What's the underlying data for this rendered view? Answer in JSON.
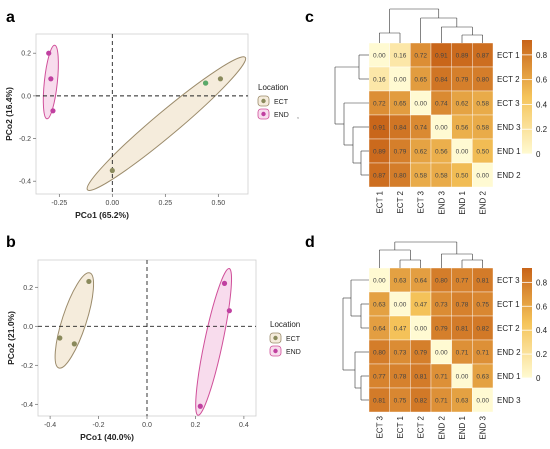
{
  "panels": [
    {
      "id": "a",
      "kind": "pcoa",
      "label": "a"
    },
    {
      "id": "c",
      "kind": "heatmap",
      "label": "c"
    },
    {
      "id": "b",
      "kind": "pcoa",
      "label": "b"
    },
    {
      "id": "d",
      "kind": "heatmap",
      "label": "d"
    }
  ],
  "legend": {
    "title": "Location",
    "items": [
      "ECT",
      "END"
    ]
  },
  "colors": {
    "ECT_point": "#8a8a5c",
    "ECT_ellipse_stroke": "#9b8b6b",
    "ECT_ellipse_fill": "#f5ecdc",
    "END_point": "#c040a0",
    "END_ellipse_stroke": "#d0509a",
    "END_ellipse_fill": "#f8dced",
    "green_point": "#5aaa6a",
    "heat_low": "#fff7c8",
    "heat_mid": "#f2b84a",
    "heat_high": "#c96a1a"
  },
  "chart_data": [
    {
      "id": "a",
      "type": "scatter",
      "xlabel": "PCo1 (65.2%)",
      "ylabel": "PCo2 (16.4%)",
      "xlim": [
        -0.36,
        0.64
      ],
      "ylim": [
        -0.46,
        0.29
      ],
      "xticks": [
        -0.25,
        0.0,
        0.25,
        0.5
      ],
      "yticks": [
        -0.4,
        -0.2,
        0.0,
        0.2
      ],
      "xtick_labels": [
        "-0.25",
        "0.00",
        "0.25",
        "0.50"
      ],
      "ytick_labels": [
        "-0.4",
        "-0.2",
        "0.0",
        "0.2"
      ],
      "series": [
        {
          "name": "ECT",
          "points": [
            [
              0.0,
              -0.35
            ],
            [
              0.44,
              0.06
            ],
            [
              0.51,
              0.08
            ]
          ]
        },
        {
          "name": "END",
          "points": [
            [
              -0.3,
              0.2
            ],
            [
              -0.29,
              0.08
            ],
            [
              -0.28,
              -0.07
            ]
          ]
        }
      ]
    },
    {
      "id": "b",
      "type": "scatter",
      "xlabel": "PCo1 (40.0%)",
      "ylabel": "PCo2 (21.0%)",
      "xlim": [
        -0.45,
        0.45
      ],
      "ylim": [
        -0.46,
        0.34
      ],
      "xticks": [
        -0.4,
        -0.2,
        0.0,
        0.2,
        0.4
      ],
      "yticks": [
        -0.4,
        -0.2,
        0.0,
        0.2
      ],
      "xtick_labels": [
        "-0.4",
        "-0.2",
        "0.0",
        "0.2",
        "0.4"
      ],
      "ytick_labels": [
        "-0.4",
        "-0.2",
        "0.0",
        "0.2"
      ],
      "series": [
        {
          "name": "ECT",
          "points": [
            [
              -0.24,
              0.23
            ],
            [
              -0.36,
              -0.06
            ],
            [
              -0.3,
              -0.09
            ]
          ]
        },
        {
          "name": "END",
          "points": [
            [
              0.32,
              0.22
            ],
            [
              0.34,
              0.08
            ],
            [
              0.22,
              -0.41
            ]
          ]
        }
      ]
    },
    {
      "id": "c",
      "type": "heatmap",
      "rows": [
        "ECT 1",
        "ECT 2",
        "ECT 3",
        "END 3",
        "END 1",
        "END 2"
      ],
      "cols": [
        "ECT 1",
        "ECT 2",
        "ECT 3",
        "END 3",
        "END 1",
        "END 2"
      ],
      "values": [
        [
          0.0,
          0.16,
          0.72,
          0.91,
          0.89,
          0.87
        ],
        [
          0.16,
          0.0,
          0.65,
          0.84,
          0.79,
          0.8
        ],
        [
          0.72,
          0.65,
          0.0,
          0.74,
          0.62,
          0.58
        ],
        [
          0.91,
          0.84,
          0.74,
          0.0,
          0.56,
          0.58
        ],
        [
          0.89,
          0.79,
          0.62,
          0.56,
          0.0,
          0.5
        ],
        [
          0.87,
          0.8,
          0.58,
          0.58,
          0.5,
          0.0
        ]
      ],
      "colorbar_ticks": [
        "0.8",
        "0.6",
        "0.4",
        "0.2",
        "0"
      ]
    },
    {
      "id": "d",
      "type": "heatmap",
      "rows": [
        "ECT 3",
        "ECT 1",
        "ECT 2",
        "END 2",
        "END 1",
        "END 3"
      ],
      "cols": [
        "ECT 3",
        "ECT 1",
        "ECT 2",
        "END 2",
        "END 1",
        "END 3"
      ],
      "values": [
        [
          0.0,
          0.63,
          0.64,
          0.8,
          0.77,
          0.81
        ],
        [
          0.63,
          0.0,
          0.47,
          0.73,
          0.78,
          0.75
        ],
        [
          0.64,
          0.47,
          0.0,
          0.79,
          0.81,
          0.82
        ],
        [
          0.8,
          0.73,
          0.79,
          0.0,
          0.71,
          0.71
        ],
        [
          0.77,
          0.78,
          0.81,
          0.71,
          0.0,
          0.63
        ],
        [
          0.81,
          0.75,
          0.82,
          0.71,
          0.63,
          0.0
        ]
      ],
      "colorbar_ticks": [
        "0.8",
        "0.6",
        "0.4",
        "0.2",
        "0"
      ]
    }
  ]
}
